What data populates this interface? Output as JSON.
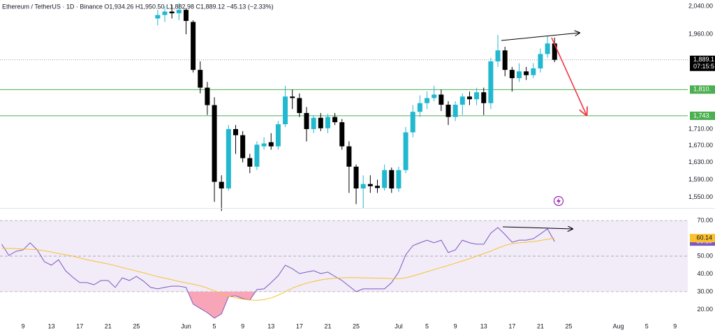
{
  "header": "Ethereum / TetherUS · 1D · Binance   O1,934.26  H1,950.50  L1,882.98  C1,889.12  −45.13 (−2.33%)",
  "chart_data": [
    {
      "type": "candlestick",
      "log": true,
      "grid": false,
      "up_color": "#22b8cf",
      "down_color": "#000000",
      "categories": [
        null,
        null,
        null,
        "9",
        null,
        null,
        null,
        "13",
        null,
        null,
        null,
        "17",
        null,
        null,
        null,
        "21",
        null,
        null,
        null,
        "25",
        null,
        null,
        null,
        null,
        null,
        null,
        "Jun",
        null,
        null,
        null,
        "5",
        null,
        null,
        null,
        "9",
        null,
        null,
        null,
        "13",
        null,
        null,
        null,
        "17",
        null,
        null,
        null,
        "21",
        null,
        null,
        null,
        "25",
        null,
        null,
        null,
        null,
        null,
        "Jul",
        null,
        null,
        null,
        "5",
        null,
        null,
        null,
        "9",
        null,
        null,
        null,
        "13",
        null,
        null,
        null,
        "17",
        null,
        null,
        null,
        "21",
        null,
        null,
        null,
        "25",
        null,
        null,
        null,
        null,
        null,
        null,
        "Aug",
        null,
        null,
        null,
        "5",
        null,
        null,
        null,
        "9",
        null
      ],
      "open": [
        null,
        null,
        null,
        null,
        null,
        null,
        null,
        null,
        null,
        null,
        null,
        null,
        null,
        null,
        null,
        null,
        null,
        null,
        null,
        null,
        null,
        null,
        2005,
        2015,
        2025,
        2020,
        2030,
        1995,
        1862,
        1815,
        1770,
        1585,
        1570,
        1710,
        1695,
        1640,
        1620,
        1668,
        1678,
        1668,
        1722,
        1792,
        1788,
        1750,
        1710,
        1738,
        1712,
        1740,
        1727,
        1668,
        1620,
        1570,
        1580,
        1576,
        1571,
        1612,
        1570,
        1612,
        1702,
        1753,
        1775,
        1788,
        1797,
        1771,
        1740,
        1771,
        1792,
        1785,
        1803,
        1775,
        1885,
        1915,
        1862,
        1840,
        1858,
        1848,
        1866,
        1905,
        1934.26,
        null,
        null,
        null,
        null,
        null,
        null,
        null,
        null,
        null,
        null,
        null,
        null,
        null,
        null,
        null,
        null,
        null,
        null
      ],
      "high": [
        null,
        null,
        null,
        null,
        null,
        null,
        null,
        null,
        null,
        null,
        null,
        null,
        null,
        null,
        null,
        null,
        null,
        null,
        null,
        null,
        null,
        null,
        2030,
        2040,
        2045,
        2050,
        2035,
        2000,
        1885,
        1830,
        1790,
        1600,
        1720,
        1720,
        1705,
        1650,
        1680,
        1690,
        1700,
        1730,
        1820,
        1810,
        1800,
        1765,
        1745,
        1750,
        1748,
        1750,
        1735,
        1680,
        1625,
        1600,
        1600,
        1590,
        1625,
        1618,
        1620,
        1715,
        1770,
        1795,
        1805,
        1820,
        1810,
        1780,
        1780,
        1800,
        1805,
        1815,
        1815,
        1895,
        1958,
        1925,
        1870,
        1880,
        1870,
        1880,
        1920,
        1955,
        1950.5,
        null,
        null,
        null,
        null,
        null,
        null,
        null,
        null,
        null,
        null,
        null,
        null,
        null,
        null,
        null,
        null,
        null,
        null
      ],
      "low": [
        null,
        null,
        null,
        null,
        null,
        null,
        null,
        null,
        null,
        null,
        null,
        null,
        null,
        null,
        null,
        null,
        null,
        null,
        null,
        null,
        null,
        null,
        1985,
        1995,
        2005,
        2000,
        1960,
        1855,
        1800,
        1745,
        1540,
        1520,
        1565,
        1650,
        1630,
        1605,
        1612,
        1660,
        1660,
        1660,
        1715,
        1760,
        1740,
        1680,
        1700,
        1705,
        1700,
        1720,
        1660,
        1560,
        1535,
        1525,
        1560,
        1560,
        1565,
        1560,
        1562,
        1605,
        1690,
        1740,
        1760,
        1780,
        1755,
        1720,
        1730,
        1745,
        1770,
        1770,
        1745,
        1760,
        1870,
        1845,
        1805,
        1830,
        1835,
        1840,
        1855,
        1895,
        1882.98,
        null,
        null,
        null,
        null,
        null,
        null,
        null,
        null,
        null,
        null,
        null,
        null,
        null,
        null,
        null,
        null,
        null,
        null
      ],
      "close": [
        null,
        null,
        null,
        null,
        null,
        null,
        null,
        null,
        null,
        null,
        null,
        null,
        null,
        null,
        null,
        null,
        null,
        null,
        null,
        null,
        null,
        null,
        2015,
        2025,
        2020,
        2030,
        1998,
        1862,
        1815,
        1770,
        1585,
        1570,
        1710,
        1695,
        1640,
        1620,
        1672,
        1675,
        1668,
        1722,
        1792,
        1788,
        1750,
        1710,
        1738,
        1712,
        1740,
        1727,
        1668,
        1620,
        1570,
        1580,
        1575,
        1571,
        1612,
        1570,
        1612,
        1702,
        1753,
        1775,
        1788,
        1797,
        1771,
        1740,
        1771,
        1792,
        1785,
        1803,
        1775,
        1885,
        1915,
        1862,
        1840,
        1858,
        1848,
        1866,
        1905,
        1934.26,
        1889.12,
        null,
        null,
        null,
        null,
        null,
        null,
        null,
        null,
        null,
        null,
        null,
        null,
        null,
        null,
        null,
        null,
        null,
        null
      ],
      "ylim": [
        1528,
        2059
      ],
      "yticks": [
        {
          "value": 2040,
          "label": "2,040.00"
        },
        {
          "value": 1960,
          "label": "1,960.00"
        },
        {
          "value": 1710,
          "label": "1,710.00"
        },
        {
          "value": 1670,
          "label": "1,670.00"
        },
        {
          "value": 1630,
          "label": "1,630.00"
        },
        {
          "value": 1590,
          "label": "1,590.00"
        },
        {
          "value": 1550,
          "label": "1,550.00"
        }
      ],
      "levels": [
        {
          "value": 1810,
          "label": "1,810."
        },
        {
          "value": 1743,
          "label": "1,743."
        }
      ],
      "level_color": "#4caf50",
      "last_price": {
        "value": 1889.12,
        "label": "1,889.1",
        "countdown": "07:15:5"
      }
    },
    {
      "type": "line",
      "ylim": [
        12.7,
        76.3
      ],
      "yticks": [
        {
          "value": 70,
          "label": "70.00"
        },
        {
          "value": 50,
          "label": "50.00"
        },
        {
          "value": 40,
          "label": "40.00"
        },
        {
          "value": 30,
          "label": "30.00"
        },
        {
          "value": 20,
          "label": "20.00"
        }
      ],
      "band": [
        30,
        70
      ],
      "midline": 50,
      "band_color": "#ede7f6",
      "oversold_color": "#f8a5b8",
      "series": [
        {
          "color": "#7e57c2",
          "label_text_color": "#ffffff",
          "values": [
            56.7,
            50.4,
            52.7,
            53.5,
            57.5,
            53.5,
            46.9,
            44.9,
            48.0,
            41.8,
            38.2,
            35.1,
            35.1,
            33.9,
            36.3,
            36.3,
            32.4,
            37.8,
            36.3,
            38.6,
            35.9,
            32.4,
            31.6,
            32.4,
            33.1,
            33.1,
            32.4,
            23.0,
            20.6,
            18.2,
            15.1,
            17.5,
            27.3,
            27.6,
            26.1,
            25.3,
            31.2,
            31.6,
            35.1,
            39.0,
            44.9,
            42.9,
            40.2,
            41.0,
            41.8,
            40.2,
            41.0,
            38.6,
            36.3,
            33.1,
            30.0,
            31.6,
            31.6,
            31.6,
            31.6,
            35.1,
            41.0,
            50.8,
            55.9,
            57.5,
            59.0,
            57.5,
            59.0,
            52.0,
            53.5,
            59.0,
            57.5,
            56.7,
            56.7,
            62.9,
            66.1,
            62.2,
            57.8,
            59.0,
            59.0,
            59.8,
            62.5,
            65.3,
            58.19,
            null,
            null,
            null,
            null,
            null,
            null,
            null,
            null,
            null,
            null,
            null,
            null,
            null,
            null,
            null,
            null,
            null,
            null
          ]
        },
        {
          "color": "#fbc02d",
          "label_text_color": "#131722",
          "values": [
            54.5,
            54.3,
            54.2,
            54.0,
            53.8,
            53.6,
            53.0,
            52.3,
            51.5,
            50.8,
            50.0,
            49.0,
            48.0,
            47.2,
            46.4,
            45.6,
            44.6,
            43.6,
            42.6,
            41.6,
            40.6,
            39.5,
            38.5,
            37.6,
            36.7,
            35.8,
            35.0,
            34.2,
            33.3,
            32.0,
            30.5,
            29.0,
            27.5,
            26.5,
            25.8,
            25.3,
            25.2,
            25.5,
            26.5,
            28.0,
            30.0,
            32.0,
            33.5,
            34.8,
            35.8,
            36.6,
            37.2,
            37.6,
            37.8,
            37.9,
            37.9,
            37.8,
            37.7,
            37.6,
            37.5,
            37.4,
            37.3,
            37.8,
            38.8,
            40.0,
            41.2,
            42.4,
            43.6,
            44.8,
            46.0,
            47.3,
            48.6,
            50.0,
            51.4,
            52.8,
            54.5,
            56.0,
            57.0,
            57.5,
            57.8,
            58.2,
            58.8,
            59.5,
            60.14,
            null,
            null,
            null,
            null,
            null,
            null,
            null,
            null,
            null,
            null,
            null,
            null,
            null,
            null,
            null,
            null,
            null,
            null
          ]
        }
      ]
    }
  ]
}
